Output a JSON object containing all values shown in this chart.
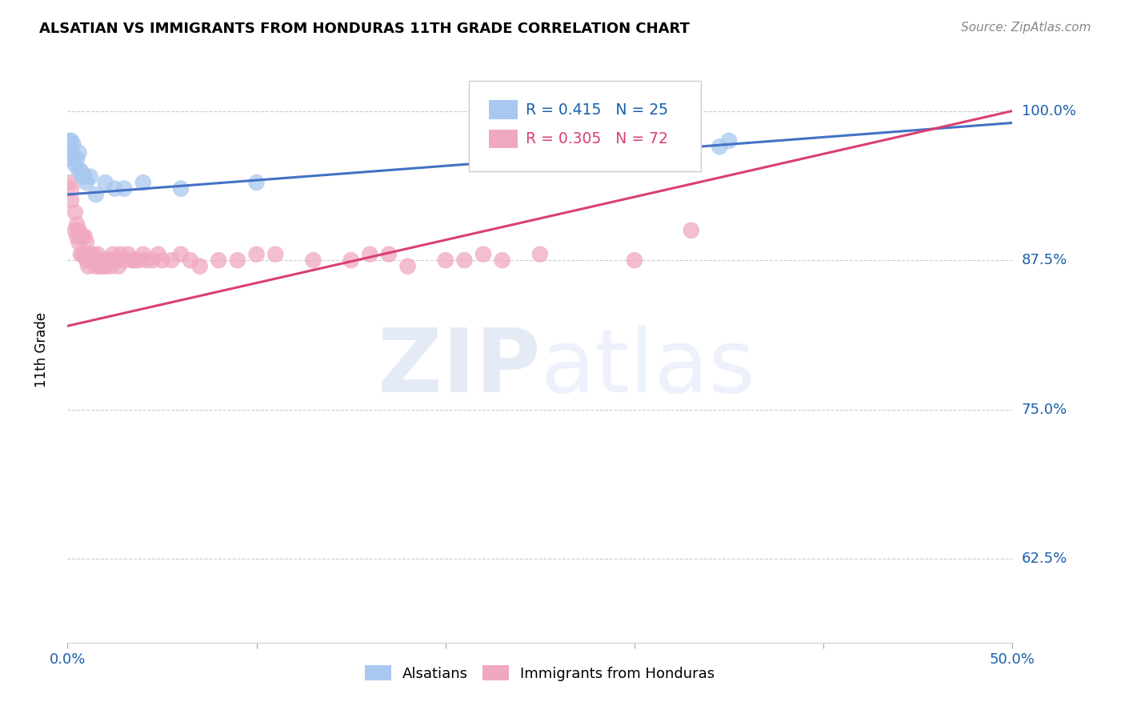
{
  "title": "ALSATIAN VS IMMIGRANTS FROM HONDURAS 11TH GRADE CORRELATION CHART",
  "source": "Source: ZipAtlas.com",
  "ylabel": "11th Grade",
  "ytick_labels": [
    "100.0%",
    "87.5%",
    "75.0%",
    "62.5%"
  ],
  "ytick_values": [
    1.0,
    0.875,
    0.75,
    0.625
  ],
  "xmin": 0.0,
  "xmax": 0.5,
  "ymin": 0.555,
  "ymax": 1.045,
  "blue_R": 0.415,
  "blue_N": 25,
  "pink_R": 0.305,
  "pink_N": 72,
  "legend_label_blue": "Alsatians",
  "legend_label_pink": "Immigrants from Honduras",
  "blue_color": "#a8c8f0",
  "pink_color": "#f0a8c0",
  "blue_line_color": "#4472c4",
  "pink_line_color": "#d94070",
  "blue_line_x0": 0.0,
  "blue_line_y0": 0.93,
  "blue_line_x1": 0.5,
  "blue_line_y1": 0.99,
  "pink_line_x0": 0.0,
  "pink_line_y0": 0.82,
  "pink_line_x1": 0.5,
  "pink_line_y1": 1.0,
  "blue_points_x": [
    0.001,
    0.001,
    0.002,
    0.002,
    0.003,
    0.003,
    0.004,
    0.005,
    0.006,
    0.006,
    0.007,
    0.008,
    0.009,
    0.01,
    0.012,
    0.015,
    0.02,
    0.025,
    0.03,
    0.04,
    0.06,
    0.1,
    0.32,
    0.345,
    0.35
  ],
  "blue_points_y": [
    0.975,
    0.965,
    0.975,
    0.968,
    0.972,
    0.96,
    0.955,
    0.96,
    0.965,
    0.95,
    0.95,
    0.945,
    0.945,
    0.94,
    0.945,
    0.93,
    0.94,
    0.935,
    0.935,
    0.94,
    0.935,
    0.94,
    0.998,
    0.97,
    0.975
  ],
  "pink_points_x": [
    0.001,
    0.001,
    0.002,
    0.002,
    0.003,
    0.004,
    0.004,
    0.005,
    0.005,
    0.006,
    0.006,
    0.007,
    0.007,
    0.008,
    0.008,
    0.009,
    0.009,
    0.01,
    0.01,
    0.011,
    0.012,
    0.012,
    0.013,
    0.014,
    0.015,
    0.015,
    0.016,
    0.016,
    0.017,
    0.018,
    0.019,
    0.02,
    0.02,
    0.021,
    0.022,
    0.023,
    0.024,
    0.025,
    0.026,
    0.027,
    0.028,
    0.03,
    0.032,
    0.034,
    0.035,
    0.036,
    0.038,
    0.04,
    0.042,
    0.045,
    0.048,
    0.05,
    0.055,
    0.06,
    0.065,
    0.07,
    0.08,
    0.09,
    0.1,
    0.11,
    0.13,
    0.15,
    0.16,
    0.17,
    0.18,
    0.2,
    0.21,
    0.22,
    0.23,
    0.25,
    0.3,
    0.33
  ],
  "pink_points_y": [
    0.96,
    0.94,
    0.935,
    0.925,
    0.96,
    0.915,
    0.9,
    0.905,
    0.895,
    0.9,
    0.89,
    0.895,
    0.88,
    0.895,
    0.88,
    0.895,
    0.88,
    0.89,
    0.875,
    0.87,
    0.88,
    0.875,
    0.88,
    0.875,
    0.875,
    0.87,
    0.88,
    0.875,
    0.87,
    0.875,
    0.87,
    0.875,
    0.87,
    0.875,
    0.875,
    0.87,
    0.88,
    0.875,
    0.875,
    0.87,
    0.88,
    0.875,
    0.88,
    0.875,
    0.875,
    0.875,
    0.875,
    0.88,
    0.875,
    0.875,
    0.88,
    0.875,
    0.875,
    0.88,
    0.875,
    0.87,
    0.875,
    0.875,
    0.88,
    0.88,
    0.875,
    0.875,
    0.88,
    0.88,
    0.87,
    0.875,
    0.875,
    0.88,
    0.875,
    0.88,
    0.875,
    0.9
  ]
}
